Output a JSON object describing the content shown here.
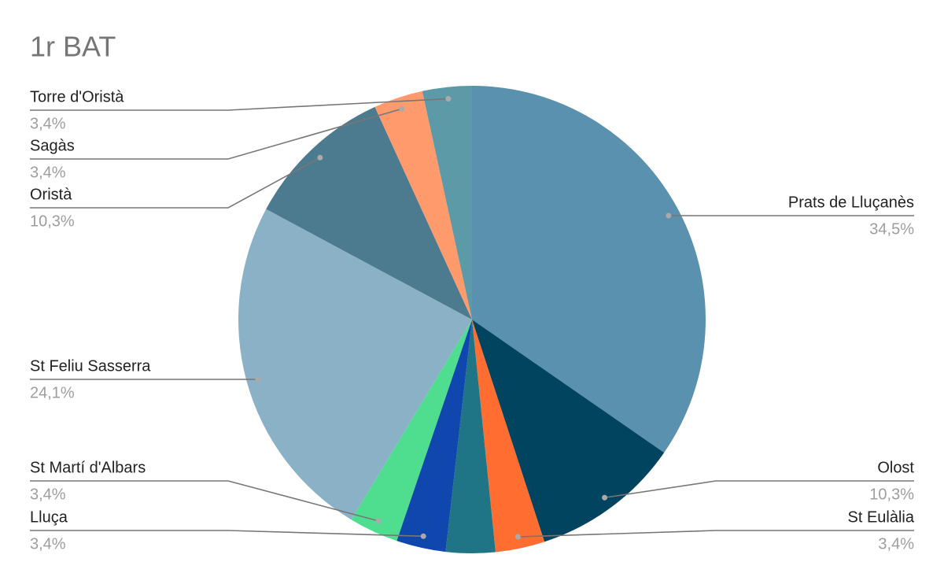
{
  "chart_data": {
    "type": "pie",
    "title": "1r BAT",
    "categories": [
      "Prats de Lluçanès",
      "Olost",
      "St Eulàlia",
      null,
      "Lluça",
      "St Martí d'Albars",
      "St Feliu Sasserra",
      "Oristà",
      "Sagàs",
      "Torre d'Oristà"
    ],
    "values": [
      34.5,
      10.3,
      3.4,
      3.4,
      3.4,
      3.4,
      24.1,
      10.3,
      3.4,
      3.4
    ],
    "value_labels": [
      "34,5%",
      "10,3%",
      "3,4%",
      null,
      "3,4%",
      "3,4%",
      "24,1%",
      "10,3%",
      "3,4%",
      "3,4%"
    ],
    "colors": [
      "#5a91ae",
      "#00445f",
      "#ff6d31",
      "#1f7585",
      "#0f47af",
      "#4fdd8f",
      "#8ab1c6",
      "#4c7a8f",
      "#ff9a6d",
      "#5b9aa6"
    ]
  }
}
